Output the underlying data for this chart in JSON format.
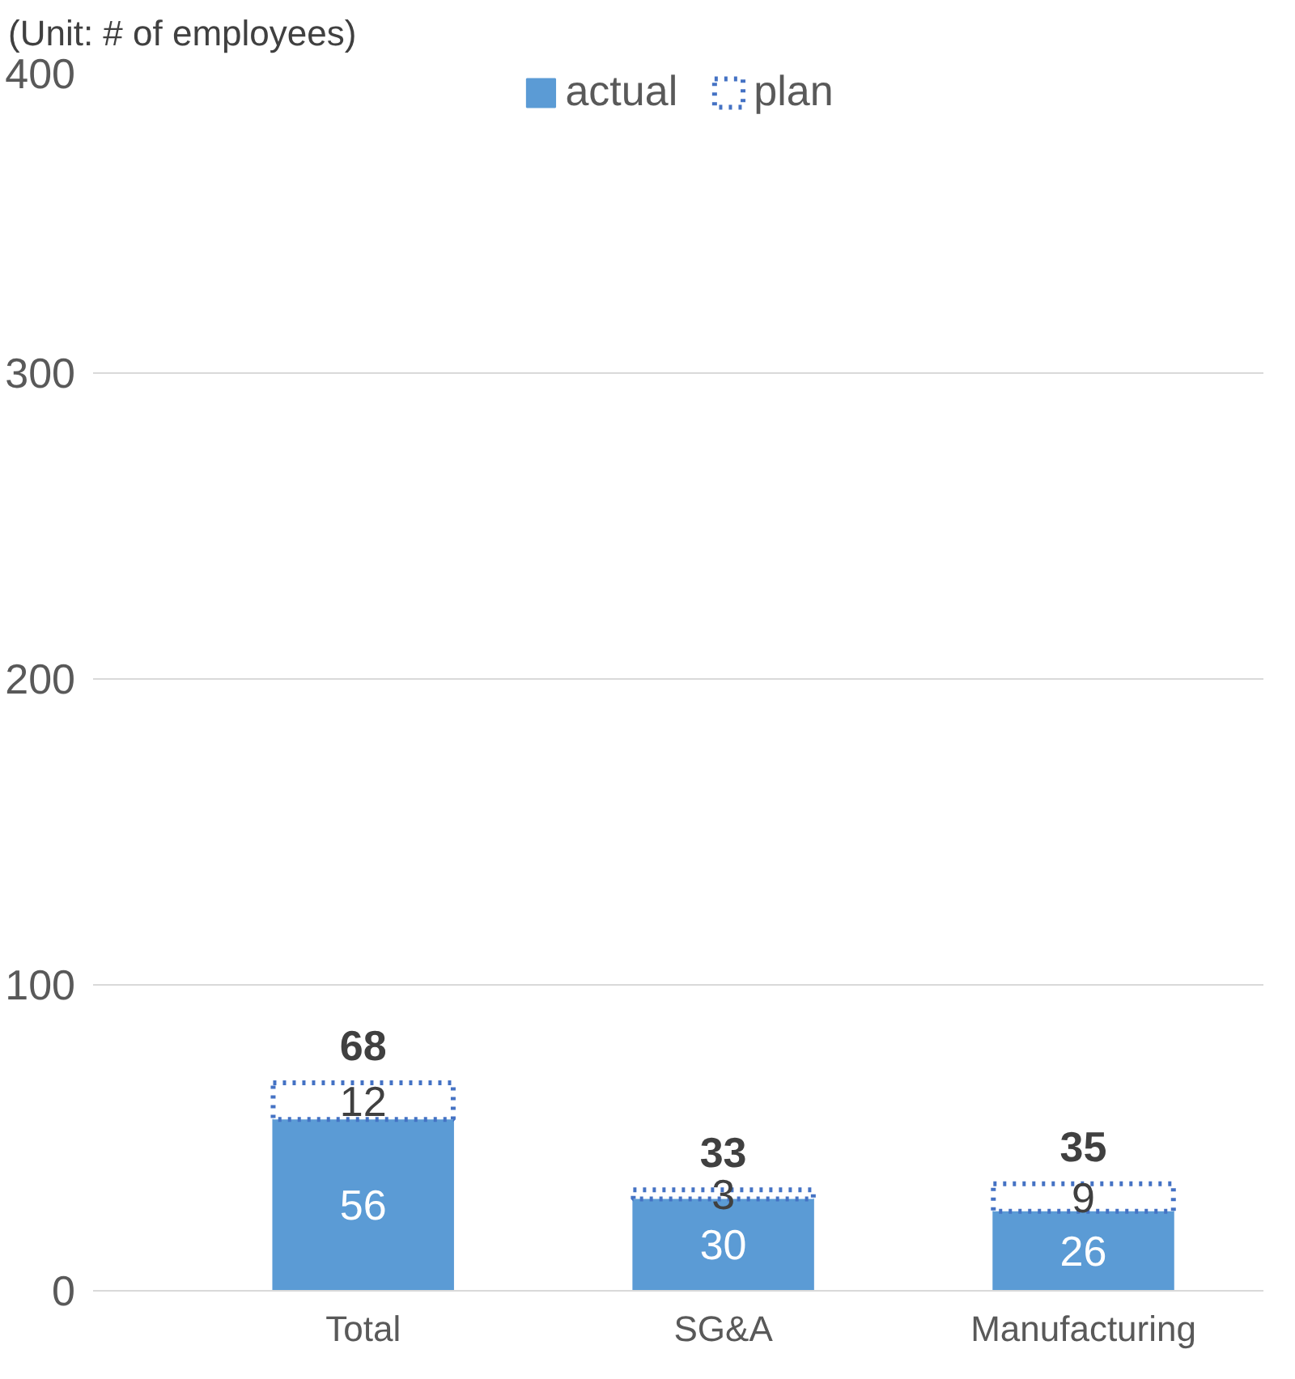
{
  "chart_data": {
    "type": "bar",
    "stacked": true,
    "categories": [
      "Total",
      "SG&A",
      "Manufacturing"
    ],
    "series": [
      {
        "name": "actual",
        "color": "#5b9bd5",
        "values": [
          56,
          30,
          26
        ]
      },
      {
        "name": "plan",
        "color": "#4472c4",
        "line_style": "dotted",
        "values": [
          12,
          3,
          9
        ]
      }
    ],
    "ylim": [
      0,
      400
    ],
    "yticks": [
      0,
      100,
      200,
      300,
      400
    ],
    "grid": "y",
    "legend": "top",
    "data_labels": true,
    "totals": [
      "68",
      "33",
      "35"
    ],
    "annotations": [
      "(Unit: # of employees)"
    ]
  }
}
